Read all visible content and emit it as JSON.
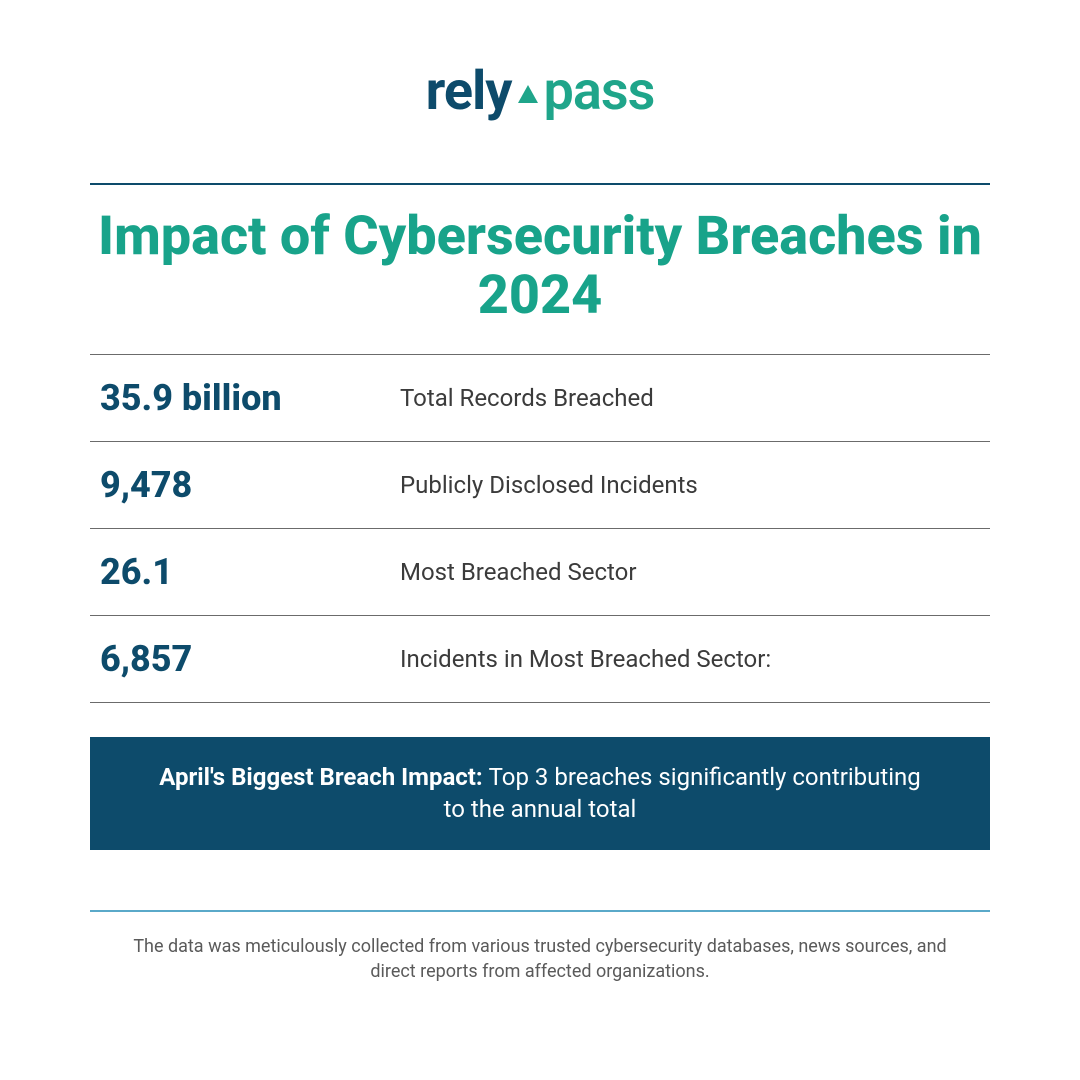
{
  "brand": {
    "part1": "rely",
    "part2": "pass",
    "color_primary": "#0d4b6b",
    "color_accent": "#1fa58a"
  },
  "title": {
    "text": "Impact of Cybersecurity Breaches in 2024",
    "color": "#18a38a",
    "fontsize": 54,
    "rule_color": "#0d4b6b"
  },
  "table": {
    "type": "table",
    "value_color": "#0d4b6b",
    "value_fontsize": 36,
    "label_color": "#3b3b3b",
    "label_fontsize": 24,
    "row_border_color": "#6b6b6b",
    "rows": [
      {
        "value": "35.9 billion",
        "label": "Total Records Breached"
      },
      {
        "value": "9,478",
        "label": "Publicly Disclosed Incidents"
      },
      {
        "value": "26.1",
        "label": "Most Breached Sector"
      },
      {
        "value": "6,857",
        "label": "Incidents in Most Breached Sector:"
      }
    ]
  },
  "callout": {
    "bg_color": "#0d4b6b",
    "text_color": "#ffffff",
    "lead": "April's Biggest Breach Impact: ",
    "body": "Top 3 breaches significantly contributing to the annual total"
  },
  "footer": {
    "rule_color": "#5aa9c9",
    "text_color": "#5a5a5a",
    "text": "The data was meticulously collected from various trusted cybersecurity databases, news sources, and direct reports from affected organizations."
  },
  "background_color": "#ffffff"
}
